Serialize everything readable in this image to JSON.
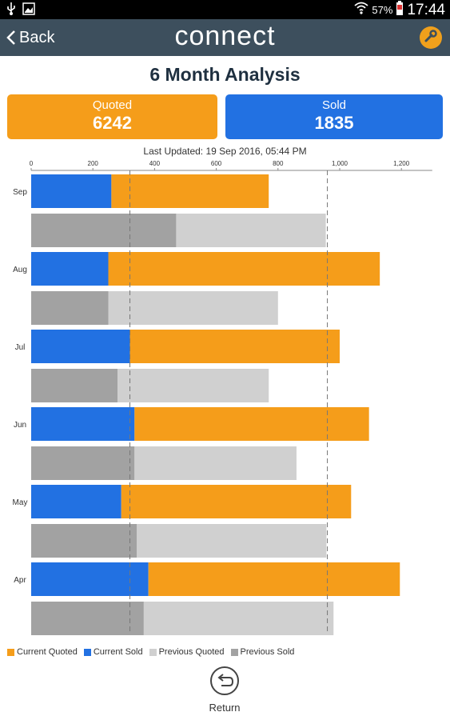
{
  "status_bar": {
    "battery": "57%",
    "time": "17:44"
  },
  "app_bar": {
    "back_label": "Back",
    "title": "connect"
  },
  "page": {
    "title": "6 Month Analysis",
    "last_updated": "Last Updated: 19 Sep 2016, 05:44 PM"
  },
  "kpis": {
    "quoted": {
      "label": "Quoted",
      "value": "6242"
    },
    "sold": {
      "label": "Sold",
      "value": "1835"
    }
  },
  "colors": {
    "current_quoted": "#f59d1a",
    "current_sold": "#2271e2",
    "previous_quoted": "#d0d0d0",
    "previous_sold": "#a2a2a2"
  },
  "chart_data": {
    "type": "bar",
    "orientation": "horizontal",
    "stacked": true,
    "categories": [
      "Sep",
      "Aug",
      "Jul",
      "Jun",
      "May",
      "Apr"
    ],
    "xlim": [
      0,
      1300
    ],
    "xticks": [
      "0",
      "200",
      "400",
      "600",
      "800",
      "1,000",
      "1,200"
    ],
    "reference_lines": [
      320,
      960
    ],
    "series": [
      {
        "name": "Current Sold",
        "group": "current",
        "color": "#2271e2",
        "values": [
          260,
          250,
          320,
          335,
          292,
          380
        ]
      },
      {
        "name": "Current Quoted",
        "group": "current",
        "color": "#f59d1a",
        "values": [
          510,
          880,
          680,
          760,
          745,
          815
        ]
      },
      {
        "name": "Previous Sold",
        "group": "previous",
        "color": "#a2a2a2",
        "values": [
          470,
          250,
          280,
          335,
          342,
          365
        ]
      },
      {
        "name": "Previous Quoted",
        "group": "previous",
        "color": "#d0d0d0",
        "values": [
          485,
          550,
          490,
          525,
          615,
          615
        ]
      }
    ],
    "legend": [
      "Current Quoted",
      "Current Sold",
      "Previous Quoted",
      "Previous Sold"
    ],
    "legend_position": "bottom"
  },
  "footer": {
    "return_label": "Return"
  }
}
